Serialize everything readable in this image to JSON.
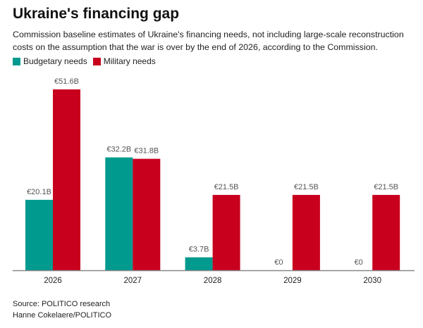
{
  "title": "Ukraine's financing gap",
  "subtitle": "Commission baseline estimates of Ukraine's financing needs, not including large-scale reconstruction costs on the assumption that the war is over by the end of 2026, according to the Commission.",
  "source": "Source: POLITICO research",
  "credit": "Hanne Cokelaere/POLITICO",
  "chart_data": {
    "type": "bar",
    "title": "Ukraine's financing gap",
    "categories": [
      "2026",
      "2027",
      "2028",
      "2029",
      "2030"
    ],
    "series": [
      {
        "name": "Budgetary needs",
        "color": "#009a8e",
        "values": [
          20.1,
          32.2,
          3.7,
          0,
          0
        ],
        "labels": [
          "€20.1B",
          "€32.2B",
          "€3.7B",
          "€0",
          "€0"
        ]
      },
      {
        "name": "Military needs",
        "color": "#c8001e",
        "values": [
          51.6,
          31.8,
          21.5,
          21.5,
          21.5
        ],
        "labels": [
          "€51.6B",
          "€31.8B",
          "€21.5B",
          "€21.5B",
          "€21.5B"
        ]
      }
    ],
    "ylim": [
      0,
      55
    ],
    "grid": false,
    "legend": "top-left",
    "xlabel": "",
    "ylabel": ""
  }
}
